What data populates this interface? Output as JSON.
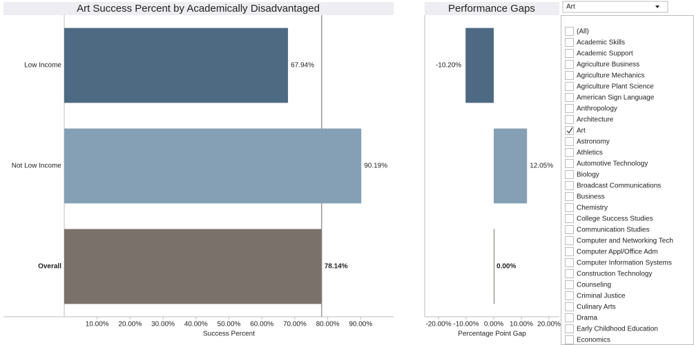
{
  "chart_data": [
    {
      "type": "hbar",
      "title": "Art Success Percent by Academically Disadvantaged",
      "categories": [
        "Low Income",
        "Not Low Income",
        "Overall"
      ],
      "values": [
        67.94,
        90.19,
        78.14
      ],
      "value_labels": [
        "67.94%",
        "90.19%",
        "78.14%"
      ],
      "colors": [
        "#4e6a82",
        "#85a0b5",
        "#7a716b"
      ],
      "reference_line": 78.14,
      "xlabel": "Success Percent",
      "xlim": [
        0,
        100
      ],
      "xticks": [
        {
          "value": 10,
          "label": "10.00%"
        },
        {
          "value": 20,
          "label": "20.00%"
        },
        {
          "value": 30,
          "label": "30.00%"
        },
        {
          "value": 40,
          "label": "40.00%"
        },
        {
          "value": 50,
          "label": "50.00%"
        },
        {
          "value": 60,
          "label": "60.00%"
        },
        {
          "value": 70,
          "label": "70.00%"
        },
        {
          "value": 80,
          "label": "80.00%"
        },
        {
          "value": 90,
          "label": "90.00%"
        }
      ]
    },
    {
      "type": "hbar",
      "title": "Performance Gaps",
      "values": [
        -10.2,
        12.05,
        0
      ],
      "value_labels": [
        "-10.20%",
        "12.05%",
        "0.00%"
      ],
      "colors": [
        "#4e6a82",
        "#85a0b5",
        "#7a716b"
      ],
      "xlabel": "Percentage Point Gap",
      "xlim": [
        -25,
        23.75
      ],
      "xticks": [
        {
          "value": -20,
          "label": "-20.00%"
        },
        {
          "value": -10,
          "label": "-10.00%"
        },
        {
          "value": 0,
          "label": "0.00%"
        },
        {
          "value": 10,
          "label": "10.00%"
        },
        {
          "value": 20,
          "label": "20.00%"
        }
      ]
    }
  ],
  "filter": {
    "selected": "Art",
    "items": [
      "(All)",
      "Academic Skills",
      "Academic Support",
      "Agriculture Business",
      "Agriculture Mechanics",
      "Agriculture Plant Science",
      "American Sign Language",
      "Anthropology",
      "Architecture",
      "Art",
      "Astronomy",
      "Athletics",
      "Automotive Technology",
      "Biology",
      "Broadcast Communications",
      "Business",
      "Chemistry",
      "College Success Studies",
      "Communication Studies",
      "Computer and Networking Tech",
      "Computer Appl/Office Adm",
      "Computer Information Systems",
      "Construction Technology",
      "Counseling",
      "Criminal Justice",
      "Culinary Arts",
      "Drama",
      "Early Childhood Education",
      "Economics"
    ]
  }
}
